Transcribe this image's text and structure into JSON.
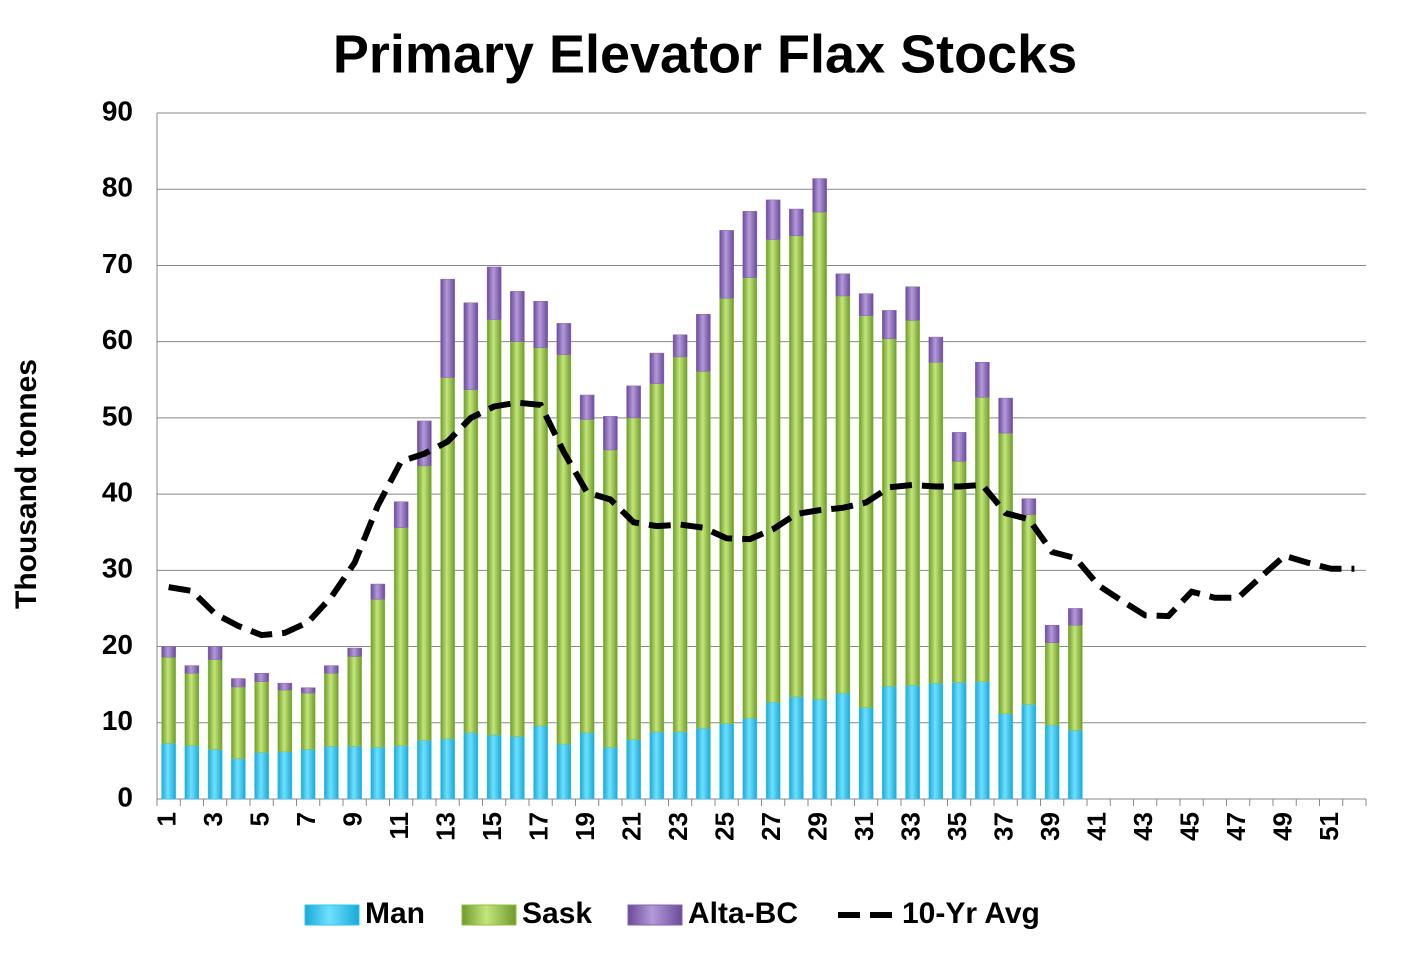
{
  "chart_data": {
    "type": "bar",
    "title": "Primary Elevator Flax Stocks",
    "y_label": "Thousand tonnes",
    "categories": [
      1,
      null,
      3,
      null,
      5,
      null,
      7,
      null,
      9,
      null,
      11,
      null,
      13,
      null,
      15,
      null,
      17,
      null,
      19,
      null,
      21,
      null,
      23,
      null,
      25,
      null,
      27,
      null,
      29,
      null,
      31,
      null,
      33,
      null,
      35,
      null,
      37,
      null,
      39,
      null,
      41,
      null,
      43,
      null,
      45,
      null,
      47,
      null,
      49,
      null,
      51,
      null
    ],
    "stacked": true,
    "series": [
      {
        "name": "Man",
        "color": "#2fc4ea",
        "values": [
          7.3,
          7,
          6.5,
          5.3,
          6.1,
          6.2,
          6.5,
          6.9,
          6.9,
          6.8,
          7,
          7.7,
          7.9,
          8.7,
          8.4,
          8.2,
          9.6,
          7.2,
          8.7,
          6.8,
          7.8,
          8.8,
          8.8,
          9.3,
          9.9,
          10.6,
          12.7,
          13.4,
          13.1,
          13.9,
          12,
          14.8,
          14.9,
          15.2,
          15.3,
          15.4,
          11.2,
          12.4,
          9.7,
          9,
          null,
          null,
          null,
          null,
          null,
          null,
          null,
          null,
          null,
          null,
          null,
          null
        ]
      },
      {
        "name": "Sask",
        "color": "#8fbf3f",
        "values": [
          11.3,
          9.5,
          11.8,
          9.4,
          9.3,
          8.1,
          7.4,
          9.6,
          11.8,
          19.4,
          28.6,
          36,
          47.4,
          45,
          54.5,
          51.8,
          49.6,
          51.1,
          41.1,
          39,
          42.2,
          45.7,
          49.2,
          46.8,
          55.8,
          57.8,
          60.7,
          60.5,
          63.9,
          52.1,
          51.4,
          45.6,
          47.9,
          42.1,
          29,
          37.3,
          36.8,
          24.9,
          10.8,
          13.8,
          null,
          null,
          null,
          null,
          null,
          null,
          null,
          null,
          null,
          null,
          null,
          null
        ]
      },
      {
        "name": "Alta-BC",
        "color": "#8462b4",
        "values": [
          1.4,
          1,
          1.7,
          1.1,
          1.1,
          0.9,
          0.7,
          1,
          1.1,
          2,
          3.4,
          5.9,
          12.9,
          11.4,
          6.9,
          6.6,
          6.1,
          4.1,
          3.2,
          4.4,
          4.2,
          4,
          2.9,
          7.5,
          8.9,
          8.7,
          5.2,
          3.5,
          4.4,
          2.9,
          2.9,
          3.7,
          4.4,
          3.3,
          3.8,
          4.6,
          4.6,
          2.1,
          2.3,
          2.2,
          null,
          null,
          null,
          null,
          null,
          null,
          null,
          null,
          null,
          null,
          null,
          null
        ]
      },
      {
        "name": "10-Yr Avg",
        "type": "line",
        "color": "#000000",
        "dashed": true,
        "values": [
          27.8,
          27.3,
          24.3,
          22.7,
          21.5,
          21.8,
          23.2,
          26.5,
          31,
          38.5,
          44.3,
          45.3,
          46.9,
          50,
          51.5,
          52,
          51.7,
          45.5,
          40.2,
          39.3,
          36.3,
          35.8,
          36,
          35.6,
          34.2,
          34.1,
          35.4,
          37.4,
          37.9,
          38.2,
          38.9,
          40.9,
          41.2,
          41,
          41,
          41.2,
          37.5,
          36.7,
          32.4,
          31.6,
          28,
          26,
          24.1,
          24,
          27.2,
          26.4,
          26.4,
          29.2,
          31.9,
          31,
          30.2,
          30.2
        ]
      }
    ],
    "ylim": [
      0,
      90
    ],
    "yticks": [
      0,
      10,
      20,
      30,
      40,
      50,
      60,
      70,
      80,
      90
    ],
    "grid": true,
    "legend": "bottom"
  }
}
